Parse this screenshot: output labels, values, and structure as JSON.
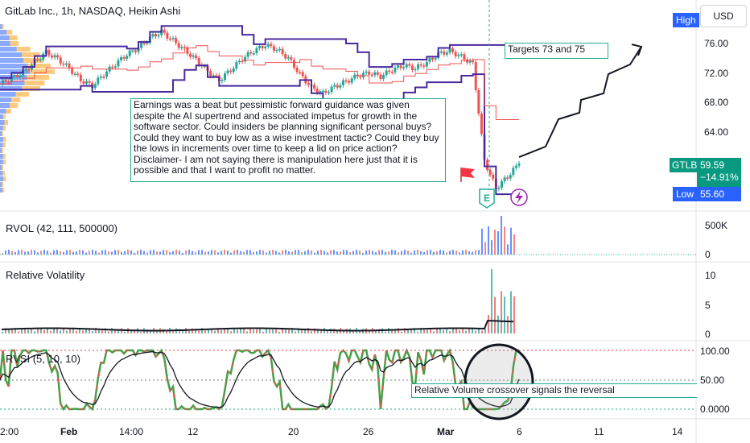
{
  "header": {
    "title": "GitLab Inc., 1h, NASDAQ, Heikin Ashi",
    "currency": "USD",
    "high_label": "High"
  },
  "price_scale": {
    "ticks": [
      "76.00",
      "72.00",
      "68.00",
      "64.00"
    ],
    "symbol": "GTLB",
    "last_price": "59.59",
    "change": "−14.91%",
    "low_label": "Low",
    "low_value": "55.60"
  },
  "annotations": {
    "main_note": "Earnings was a beat but pessimistic forward guidance was given despite the AI supertrend and associated impetus for growth in the software sector.  Could insiders be planning significant personal buys? Could they want to buy low as a wise investment tactic?  Could they buy the lows in increments over time to keep a lid on price action? Disclaimer- I am not saying there is manipulation here just that it is possible and that I want to profit no matter.",
    "targets_note": "Targets 73 and 75",
    "reversal_note": "Relative Volume crossover signals the reversal",
    "earnings_badge": "E"
  },
  "panes": {
    "rvol": {
      "title": "RVOL (42, 111, 500000)",
      "ticks": [
        "500K",
        "0"
      ]
    },
    "rel_vol": {
      "title": "Relative Volatility",
      "ticks": [
        "10",
        "5",
        "0"
      ]
    },
    "rvsi": {
      "title": "RVSI (5, 10, 10)",
      "ticks": [
        "100.00",
        "50.00",
        "0.0000"
      ]
    }
  },
  "time_axis": {
    "labels": [
      "2:00",
      "Feb",
      "14:00",
      "12",
      "20",
      "26",
      "Mar",
      "6",
      "11",
      "14"
    ]
  },
  "colors": {
    "up": "#26a69a",
    "down": "#ef5350",
    "accent": "#2962ff",
    "channel": "#4a2a9e",
    "note_border": "#22ab94"
  },
  "chart_data": {
    "type": "line",
    "title": "GitLab Inc., 1h, NASDAQ, Heikin Ashi",
    "ylim": [
      55,
      78
    ],
    "price": [
      70.5,
      71.2,
      72.0,
      73.5,
      74.8,
      73.9,
      72.6,
      71.0,
      70.2,
      71.8,
      73.2,
      74.5,
      75.4,
      76.8,
      77.6,
      76.4,
      75.1,
      73.8,
      72.2,
      71.0,
      72.4,
      73.9,
      75.0,
      75.8,
      75.2,
      74.0,
      71.8,
      70.0,
      69.2,
      70.1,
      70.8,
      71.6,
      72.0,
      71.5,
      72.4,
      73.0,
      72.6,
      73.4,
      74.6,
      75.0,
      74.2,
      73.2,
      60.0,
      56.2,
      57.8,
      59.6
    ],
    "buy_target_levels": [
      73,
      75
    ],
    "last_price": 59.59,
    "low": 55.6,
    "rvsi_ylim": [
      0,
      100
    ],
    "rvsi_levels": [
      0,
      50,
      100
    ]
  }
}
